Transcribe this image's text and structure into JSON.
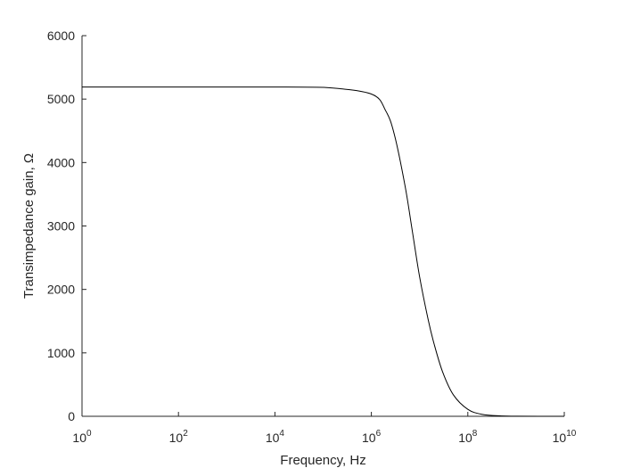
{
  "chart_data": {
    "type": "line",
    "title": "",
    "xlabel": "Frequency, Hz",
    "ylabel": "Transimpedance gain, Ω",
    "x_scale": "log",
    "xlim": [
      1,
      10000000000
    ],
    "ylim": [
      0,
      6000
    ],
    "x_ticks": [
      {
        "base": "10",
        "exp": "0"
      },
      {
        "base": "10",
        "exp": "2"
      },
      {
        "base": "10",
        "exp": "4"
      },
      {
        "base": "10",
        "exp": "6"
      },
      {
        "base": "10",
        "exp": "8"
      },
      {
        "base": "10",
        "exp": "10"
      }
    ],
    "y_ticks": [
      "0",
      "1000",
      "2000",
      "3000",
      "4000",
      "5000",
      "6000"
    ],
    "grid": false,
    "legend": "none",
    "line_color": "#000000",
    "axis_color": "#262626",
    "series": [
      {
        "x": [
          1,
          10,
          100,
          1000,
          10000,
          100000,
          1000000,
          2000000,
          3000000,
          5000000,
          7000000,
          10000000,
          15000000,
          20000000,
          30000000,
          50000000,
          100000000,
          200000000,
          500000000,
          1000000000,
          10000000000
        ],
        "y": [
          5190,
          5190,
          5190,
          5190,
          5190,
          5185,
          5080,
          4810,
          4440,
          3630,
          2940,
          2200,
          1530,
          1140,
          700,
          340,
          110,
          30,
          6,
          2,
          0
        ]
      }
    ]
  }
}
